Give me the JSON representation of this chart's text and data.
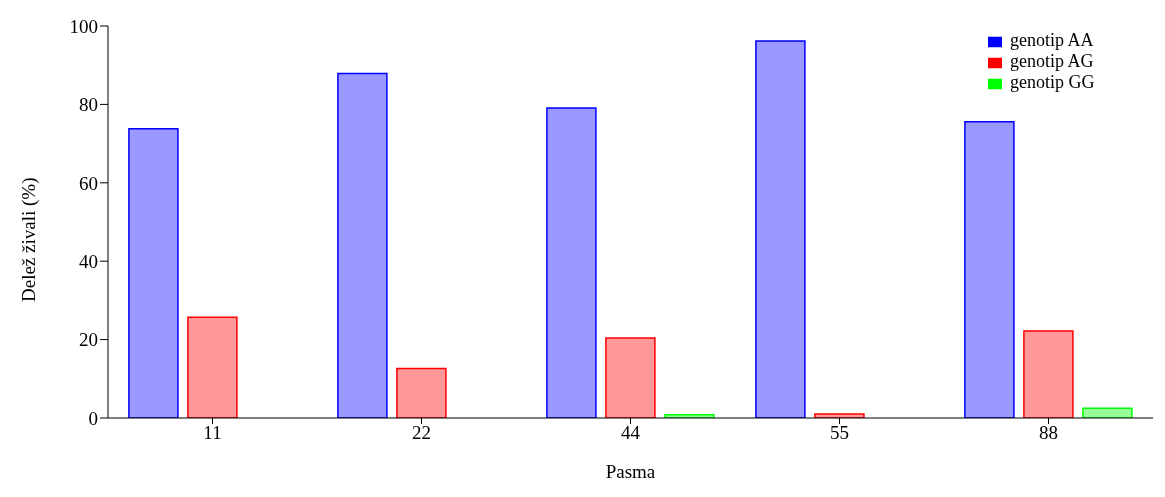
{
  "chart_data": {
    "type": "bar",
    "xlabel": "Pasma",
    "ylabel": "Delež živali (%)",
    "categories": [
      "11",
      "22",
      "44",
      "55",
      "88"
    ],
    "series": [
      {
        "name": "genotip AA",
        "color": "#0000ff",
        "values": [
          73.8,
          87.9,
          79.1,
          96.2,
          75.6
        ]
      },
      {
        "name": "genotip AG",
        "color": "#ff0000",
        "values": [
          25.7,
          12.6,
          20.4,
          1.0,
          22.2
        ]
      },
      {
        "name": "genotip GG",
        "color": "#00ff00",
        "values": [
          0,
          0,
          0.8,
          0,
          2.5
        ]
      }
    ],
    "ylim": [
      0,
      100
    ],
    "yticks": [
      0,
      20,
      40,
      60,
      80,
      100
    ],
    "grid": false,
    "legend": "top right"
  }
}
